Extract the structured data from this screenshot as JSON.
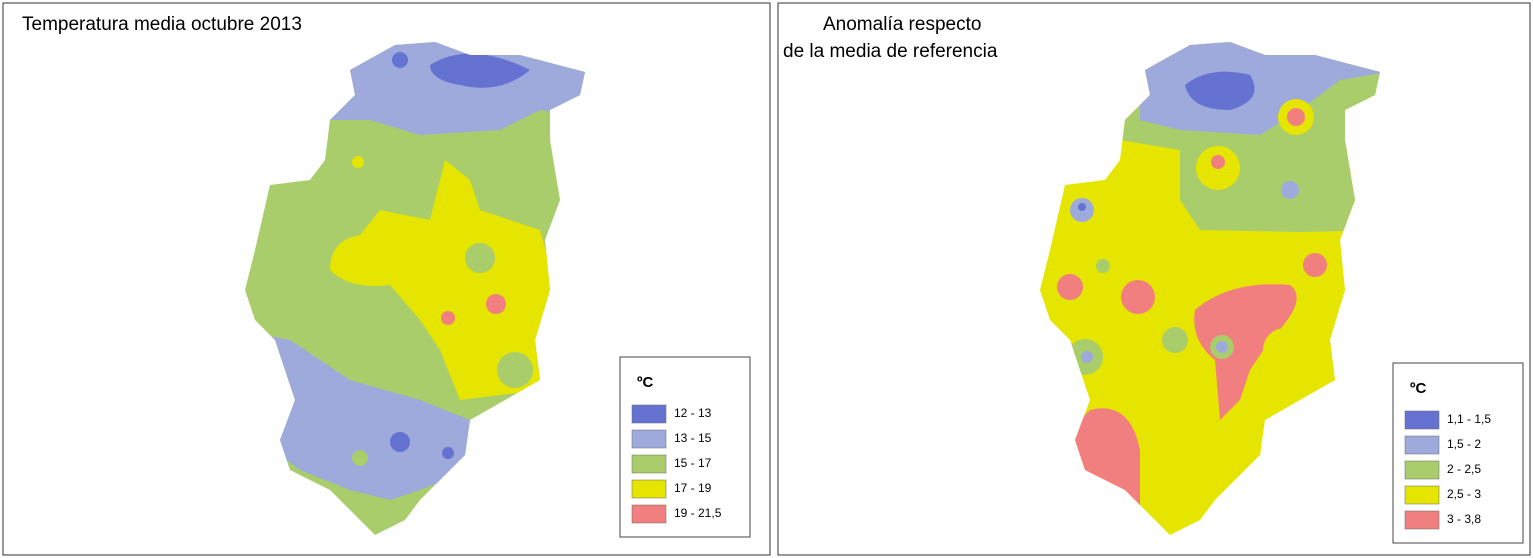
{
  "maps": [
    {
      "title_lines": [
        "Temperatura media octubre 2013"
      ],
      "legend": {
        "title": "ºC",
        "items": [
          {
            "label": "12 - 13",
            "color": "#6672d2"
          },
          {
            "label": "13 - 15",
            "color": "#9eaadc"
          },
          {
            "label": "15 - 17",
            "color": "#a9cd6b"
          },
          {
            "label": "17 - 19",
            "color": "#e5e500"
          },
          {
            "label": "19 - 21,5",
            "color": "#f27f7f"
          }
        ]
      }
    },
    {
      "title_lines": [
        "Anomalía respecto",
        "de la media de referencia"
      ],
      "legend": {
        "title": "ºC",
        "items": [
          {
            "label": "1,1 - 1,5",
            "color": "#6672d2"
          },
          {
            "label": "1,5 - 2",
            "color": "#9eaadc"
          },
          {
            "label": "2 - 2,5",
            "color": "#a9cd6b"
          },
          {
            "label": "2,5 - 3",
            "color": "#e5e500"
          },
          {
            "label": "3 - 3,8",
            "color": "#f27f7f"
          }
        ]
      }
    }
  ]
}
